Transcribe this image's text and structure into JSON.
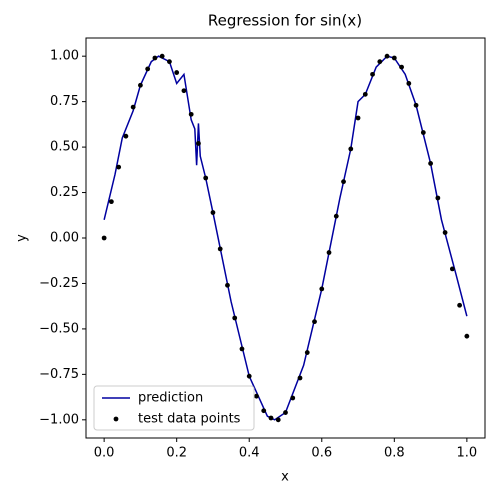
{
  "chart_data": {
    "type": "line",
    "title": "Regression for sin(x)",
    "x_label": "x",
    "y_label": "y",
    "xlim": [
      -0.05,
      1.05
    ],
    "ylim": [
      -1.1,
      1.1
    ],
    "xticks": [
      {
        "value": 0,
        "label": "0.0"
      },
      {
        "value": 0.2,
        "label": "0.2"
      },
      {
        "value": 0.4,
        "label": "0.4"
      },
      {
        "value": 0.6,
        "label": "0.6"
      },
      {
        "value": 0.8,
        "label": "0.8"
      },
      {
        "value": 1,
        "label": "1.0"
      }
    ],
    "yticks": [
      {
        "value": -1,
        "label": "−1.00"
      },
      {
        "value": -0.75,
        "label": "−0.75"
      },
      {
        "value": -0.5,
        "label": "−0.50"
      },
      {
        "value": -0.25,
        "label": "−0.25"
      },
      {
        "value": 0,
        "label": "0.00"
      },
      {
        "value": 0.25,
        "label": "0.25"
      },
      {
        "value": 0.5,
        "label": "0.50"
      },
      {
        "value": 0.75,
        "label": "0.75"
      },
      {
        "value": 1,
        "label": "1.00"
      }
    ],
    "legend": "lower left",
    "series": [
      {
        "name": "prediction",
        "type": "line",
        "color": "#0000a0",
        "x": [
          0,
          0.03,
          0.05,
          0.08,
          0.1,
          0.13,
          0.15,
          0.18,
          0.2,
          0.22,
          0.24,
          0.25,
          0.255,
          0.26,
          0.265,
          0.28,
          0.3,
          0.35,
          0.4,
          0.45,
          0.47,
          0.5,
          0.55,
          0.6,
          0.65,
          0.68,
          0.7,
          0.72,
          0.75,
          0.78,
          0.8,
          0.83,
          0.86,
          0.9,
          0.93,
          0.95,
          0.97,
          1.0
        ],
        "values": [
          0.1,
          0.35,
          0.55,
          0.7,
          0.84,
          0.97,
          1.0,
          0.97,
          0.85,
          0.9,
          0.65,
          0.6,
          0.4,
          0.63,
          0.45,
          0.33,
          0.14,
          -0.35,
          -0.76,
          -0.98,
          -1.0,
          -0.96,
          -0.7,
          -0.28,
          0.22,
          0.49,
          0.75,
          0.79,
          0.94,
          1.0,
          0.99,
          0.9,
          0.73,
          0.41,
          0.1,
          -0.05,
          -0.2,
          -0.43
        ]
      },
      {
        "name": "test data points",
        "type": "scatter",
        "color": "#000000",
        "x": [
          0,
          0.02,
          0.04,
          0.06,
          0.08,
          0.1,
          0.12,
          0.14,
          0.16,
          0.18,
          0.2,
          0.22,
          0.24,
          0.26,
          0.28,
          0.3,
          0.32,
          0.34,
          0.36,
          0.38,
          0.4,
          0.42,
          0.44,
          0.46,
          0.48,
          0.5,
          0.52,
          0.54,
          0.56,
          0.58,
          0.6,
          0.62,
          0.64,
          0.66,
          0.68,
          0.7,
          0.72,
          0.74,
          0.76,
          0.78,
          0.8,
          0.82,
          0.84,
          0.86,
          0.88,
          0.9,
          0.92,
          0.94,
          0.96,
          0.98,
          1.0
        ],
        "values": [
          0.0,
          0.2,
          0.39,
          0.56,
          0.72,
          0.84,
          0.93,
          0.99,
          1.0,
          0.97,
          0.91,
          0.81,
          0.68,
          0.52,
          0.33,
          0.14,
          -0.06,
          -0.26,
          -0.44,
          -0.61,
          -0.76,
          -0.87,
          -0.95,
          -0.99,
          -1.0,
          -0.96,
          -0.88,
          -0.77,
          -0.63,
          -0.46,
          -0.28,
          -0.08,
          0.12,
          0.31,
          0.49,
          0.66,
          0.79,
          0.9,
          0.97,
          1.0,
          0.99,
          0.94,
          0.85,
          0.73,
          0.58,
          0.41,
          0.22,
          0.03,
          -0.17,
          -0.37,
          -0.54
        ]
      }
    ]
  }
}
